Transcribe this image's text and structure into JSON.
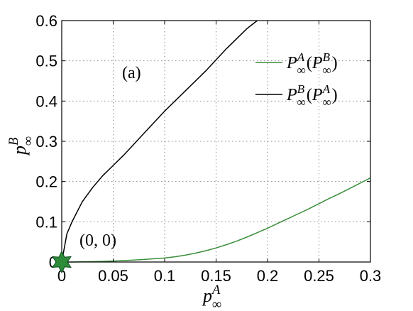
{
  "chart_data": {
    "type": "line",
    "xlim": [
      0,
      0.3
    ],
    "ylim": [
      0,
      0.6
    ],
    "x_ticks": [
      "0",
      "0.05",
      "0.1",
      "0.15",
      "0.2",
      "0.25",
      "0.3"
    ],
    "y_ticks": [
      "0",
      "0.1",
      "0.2",
      "0.3",
      "0.4",
      "0.5",
      "0.6"
    ],
    "grid": true,
    "legend_position": "top-right",
    "xlabel": {
      "base": "p",
      "sub": "∞",
      "sup": "A"
    },
    "ylabel": {
      "base": "p",
      "sub": "∞",
      "sup": "B"
    },
    "panel_label": "(a)",
    "point_label": "(0, 0)",
    "marker": {
      "x": 0,
      "y": 0,
      "shape": "star",
      "color": "#2e8b3a"
    },
    "series": [
      {
        "legend": {
          "base": "P",
          "sub": "∞",
          "sup": "A",
          "arg_base": "P",
          "arg_sub": "∞",
          "arg_sup": "B"
        },
        "color": "#3a8f3a",
        "x": [
          0,
          0.01,
          0.02,
          0.03,
          0.04,
          0.05,
          0.06,
          0.07,
          0.08,
          0.09,
          0.1,
          0.11,
          0.12,
          0.13,
          0.14,
          0.15,
          0.16,
          0.17,
          0.18,
          0.19,
          0.2,
          0.21,
          0.22,
          0.23,
          0.24,
          0.25,
          0.26,
          0.27,
          0.28,
          0.29,
          0.3
        ],
        "y": [
          0,
          0.0001,
          0.0004,
          0.0009,
          0.0016,
          0.0025,
          0.0036,
          0.0049,
          0.0064,
          0.0081,
          0.01,
          0.013,
          0.017,
          0.022,
          0.028,
          0.035,
          0.043,
          0.052,
          0.062,
          0.073,
          0.084,
          0.096,
          0.108,
          0.12,
          0.132,
          0.145,
          0.158,
          0.17,
          0.183,
          0.196,
          0.209
        ]
      },
      {
        "legend": {
          "base": "P",
          "sub": "∞",
          "sup": "B",
          "arg_base": "P",
          "arg_sub": "∞",
          "arg_sup": "A"
        },
        "color": "#000000",
        "x": [
          0,
          0.005,
          0.01,
          0.02,
          0.03,
          0.04,
          0.05,
          0.06,
          0.08,
          0.1,
          0.12,
          0.14,
          0.16,
          0.18,
          0.19
        ],
        "y": [
          0,
          0.07,
          0.1,
          0.15,
          0.185,
          0.215,
          0.24,
          0.265,
          0.32,
          0.375,
          0.425,
          0.475,
          0.53,
          0.58,
          0.6
        ]
      }
    ]
  }
}
